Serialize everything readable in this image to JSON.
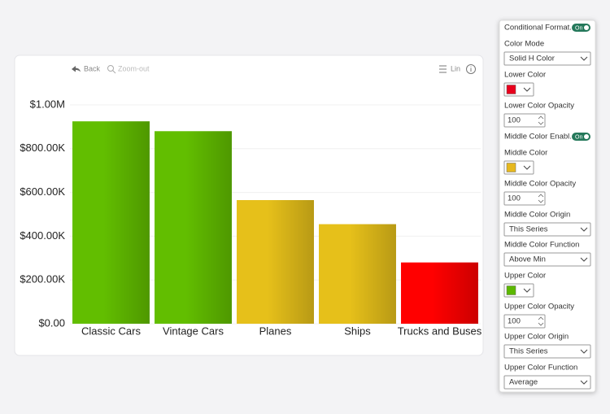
{
  "chart_data": {
    "type": "bar",
    "categories": [
      "Classic Cars",
      "Vintage Cars",
      "Planes",
      "Ships",
      "Trucks and Buses"
    ],
    "values": [
      925000,
      880000,
      565000,
      455000,
      280000
    ],
    "colors": [
      "#62be00",
      "#62be00",
      "#e6c01a",
      "#e6c01a",
      "#ff0000"
    ],
    "ylim": [
      0,
      1000000
    ],
    "yticks": [
      {
        "value": 0,
        "label": "$0.00"
      },
      {
        "value": 200000,
        "label": "$200.00K"
      },
      {
        "value": 400000,
        "label": "$400.00K"
      },
      {
        "value": 600000,
        "label": "$600.00K"
      },
      {
        "value": 800000,
        "label": "$800.00K"
      },
      {
        "value": 1000000,
        "label": "$1.00M"
      }
    ],
    "grid": true
  },
  "toolbar": {
    "back": "Back",
    "zoom_out": "Zoom-out",
    "scale": "Lin"
  },
  "panel": {
    "items": [
      {
        "label": "Conditional Format...",
        "control": "toggle",
        "value": "On"
      },
      {
        "label": "Color Mode",
        "control": "select",
        "value": "Solid H Color"
      },
      {
        "label": "Lower Color",
        "control": "color",
        "value": "#e8001c"
      },
      {
        "label": "Lower Color Opacity",
        "control": "number",
        "value": 100
      },
      {
        "label": "Middle Color Enabl...",
        "control": "toggle",
        "value": "On"
      },
      {
        "label": "Middle Color",
        "control": "color",
        "value": "#e6b81e"
      },
      {
        "label": "Middle Color Opacity",
        "control": "number",
        "value": 100
      },
      {
        "label": "Middle Color Origin",
        "control": "select",
        "value": "This Series"
      },
      {
        "label": "Middle Color Function",
        "control": "select",
        "value": "Above Min"
      },
      {
        "label": "Upper Color",
        "control": "color",
        "value": "#5cb800"
      },
      {
        "label": "Upper Color Opacity",
        "control": "number",
        "value": 100
      },
      {
        "label": "Upper Color Origin",
        "control": "select",
        "value": "This Series"
      },
      {
        "label": "Upper Color Function",
        "control": "select",
        "value": "Average"
      }
    ]
  }
}
